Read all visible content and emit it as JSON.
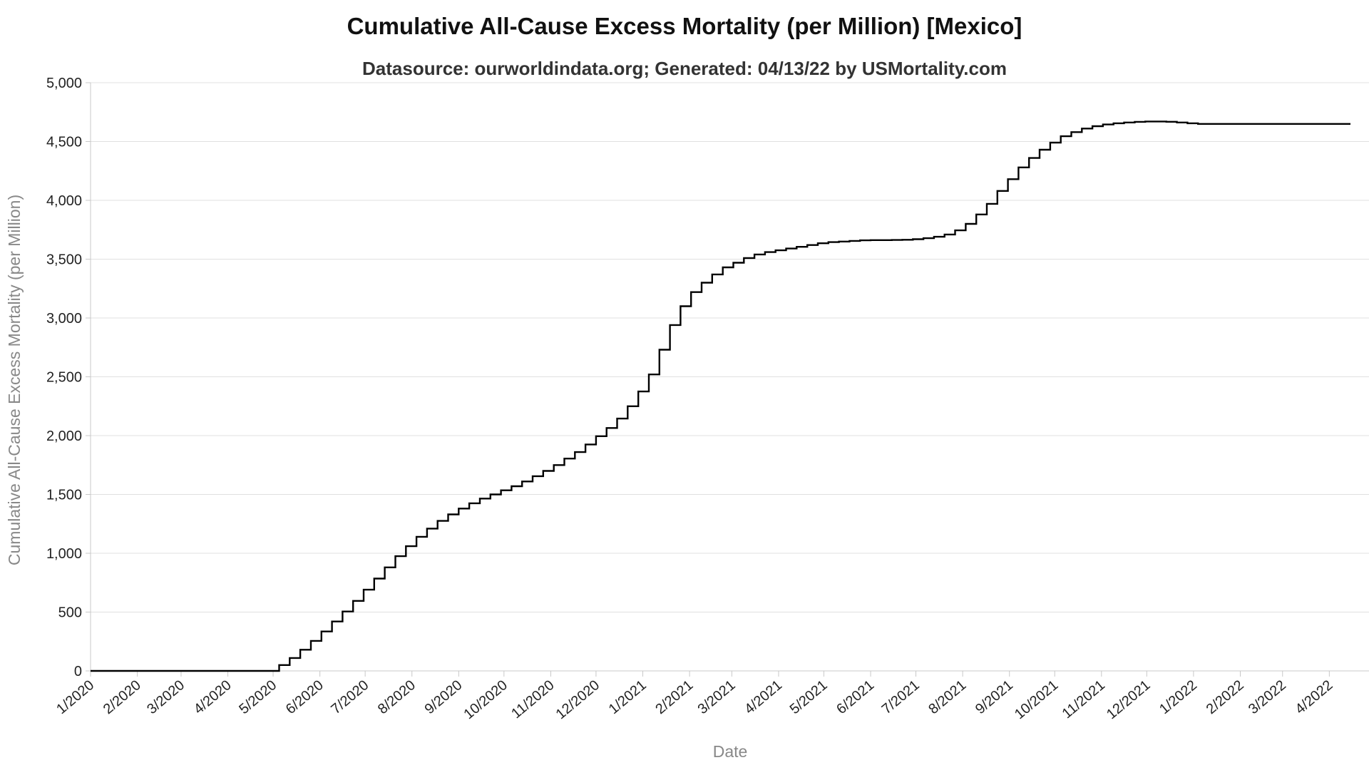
{
  "chart_data": {
    "type": "line",
    "title": "Cumulative All-Cause Excess Mortality (per Million) [Mexico]",
    "subtitle": "Datasource: ourworldindata.org; Generated: 04/13/22 by USMortality.com",
    "xlabel": "Date",
    "ylabel": "Cumulative All-Cause Excess Mortality (per Million)",
    "ylim": [
      0,
      5000
    ],
    "y_ticks": [
      0,
      500,
      1000,
      1500,
      2000,
      2500,
      3000,
      3500,
      4000,
      4500,
      5000
    ],
    "y_tick_labels": [
      "0",
      "500",
      "1,000",
      "1,500",
      "2,000",
      "2,500",
      "3,000",
      "3,500",
      "4,000",
      "4,500",
      "5,000"
    ],
    "x_ticks": [
      "2020-01-01",
      "2020-02-01",
      "2020-03-01",
      "2020-04-01",
      "2020-05-01",
      "2020-06-01",
      "2020-07-01",
      "2020-08-01",
      "2020-09-01",
      "2020-10-01",
      "2020-11-01",
      "2020-12-01",
      "2021-01-01",
      "2021-02-01",
      "2021-03-01",
      "2021-04-01",
      "2021-05-01",
      "2021-06-01",
      "2021-07-01",
      "2021-08-01",
      "2021-09-01",
      "2021-10-01",
      "2021-11-01",
      "2021-12-01",
      "2022-01-01",
      "2022-02-01",
      "2022-03-01",
      "2022-04-01"
    ],
    "x_tick_labels": [
      "1/2020",
      "2/2020",
      "3/2020",
      "4/2020",
      "5/2020",
      "6/2020",
      "7/2020",
      "8/2020",
      "9/2020",
      "10/2020",
      "11/2020",
      "12/2020",
      "1/2021",
      "2/2021",
      "3/2021",
      "4/2021",
      "5/2021",
      "6/2021",
      "7/2021",
      "8/2021",
      "9/2021",
      "10/2021",
      "11/2021",
      "12/2021",
      "1/2022",
      "2/2022",
      "3/2022",
      "4/2022"
    ],
    "grid": true,
    "line_color": "#000000",
    "step": true,
    "series": [
      {
        "points": [
          [
            "2020-01-01",
            0
          ],
          [
            "2020-01-20",
            0
          ],
          [
            "2020-02-01",
            0
          ],
          [
            "2020-04-30",
            0
          ],
          [
            "2020-05-05",
            50
          ],
          [
            "2020-05-12",
            110
          ],
          [
            "2020-05-19",
            180
          ],
          [
            "2020-05-26",
            255
          ],
          [
            "2020-06-02",
            335
          ],
          [
            "2020-06-09",
            420
          ],
          [
            "2020-06-16",
            505
          ],
          [
            "2020-06-23",
            595
          ],
          [
            "2020-06-30",
            690
          ],
          [
            "2020-07-07",
            785
          ],
          [
            "2020-07-14",
            880
          ],
          [
            "2020-07-21",
            975
          ],
          [
            "2020-07-28",
            1060
          ],
          [
            "2020-08-04",
            1140
          ],
          [
            "2020-08-11",
            1210
          ],
          [
            "2020-08-18",
            1275
          ],
          [
            "2020-08-25",
            1330
          ],
          [
            "2020-09-01",
            1380
          ],
          [
            "2020-09-08",
            1425
          ],
          [
            "2020-09-15",
            1465
          ],
          [
            "2020-09-22",
            1500
          ],
          [
            "2020-09-29",
            1535
          ],
          [
            "2020-10-06",
            1570
          ],
          [
            "2020-10-13",
            1610
          ],
          [
            "2020-10-20",
            1655
          ],
          [
            "2020-10-27",
            1700
          ],
          [
            "2020-11-03",
            1750
          ],
          [
            "2020-11-10",
            1805
          ],
          [
            "2020-11-17",
            1860
          ],
          [
            "2020-11-24",
            1925
          ],
          [
            "2020-12-01",
            1995
          ],
          [
            "2020-12-08",
            2065
          ],
          [
            "2020-12-15",
            2145
          ],
          [
            "2020-12-22",
            2250
          ],
          [
            "2020-12-29",
            2375
          ],
          [
            "2021-01-05",
            2520
          ],
          [
            "2021-01-12",
            2730
          ],
          [
            "2021-01-19",
            2940
          ],
          [
            "2021-01-26",
            3100
          ],
          [
            "2021-02-02",
            3220
          ],
          [
            "2021-02-09",
            3300
          ],
          [
            "2021-02-16",
            3370
          ],
          [
            "2021-02-23",
            3430
          ],
          [
            "2021-03-02",
            3470
          ],
          [
            "2021-03-09",
            3510
          ],
          [
            "2021-03-16",
            3540
          ],
          [
            "2021-03-23",
            3560
          ],
          [
            "2021-03-30",
            3575
          ],
          [
            "2021-04-06",
            3590
          ],
          [
            "2021-04-13",
            3605
          ],
          [
            "2021-04-20",
            3620
          ],
          [
            "2021-04-27",
            3635
          ],
          [
            "2021-05-04",
            3645
          ],
          [
            "2021-05-11",
            3650
          ],
          [
            "2021-05-18",
            3655
          ],
          [
            "2021-05-25",
            3660
          ],
          [
            "2021-06-01",
            3662
          ],
          [
            "2021-06-08",
            3662
          ],
          [
            "2021-06-15",
            3663
          ],
          [
            "2021-06-22",
            3665
          ],
          [
            "2021-06-29",
            3670
          ],
          [
            "2021-07-06",
            3678
          ],
          [
            "2021-07-13",
            3690
          ],
          [
            "2021-07-20",
            3710
          ],
          [
            "2021-07-27",
            3745
          ],
          [
            "2021-08-03",
            3800
          ],
          [
            "2021-08-10",
            3880
          ],
          [
            "2021-08-17",
            3970
          ],
          [
            "2021-08-24",
            4080
          ],
          [
            "2021-08-31",
            4180
          ],
          [
            "2021-09-07",
            4280
          ],
          [
            "2021-09-14",
            4360
          ],
          [
            "2021-09-21",
            4430
          ],
          [
            "2021-09-28",
            4490
          ],
          [
            "2021-10-05",
            4545
          ],
          [
            "2021-10-12",
            4580
          ],
          [
            "2021-10-19",
            4610
          ],
          [
            "2021-10-26",
            4630
          ],
          [
            "2021-11-02",
            4645
          ],
          [
            "2021-11-09",
            4655
          ],
          [
            "2021-11-16",
            4662
          ],
          [
            "2021-11-23",
            4667
          ],
          [
            "2021-11-30",
            4670
          ],
          [
            "2021-12-07",
            4670
          ],
          [
            "2021-12-14",
            4668
          ],
          [
            "2021-12-21",
            4662
          ],
          [
            "2021-12-28",
            4655
          ],
          [
            "2022-01-04",
            4650
          ],
          [
            "2022-04-15",
            4650
          ]
        ]
      }
    ]
  }
}
